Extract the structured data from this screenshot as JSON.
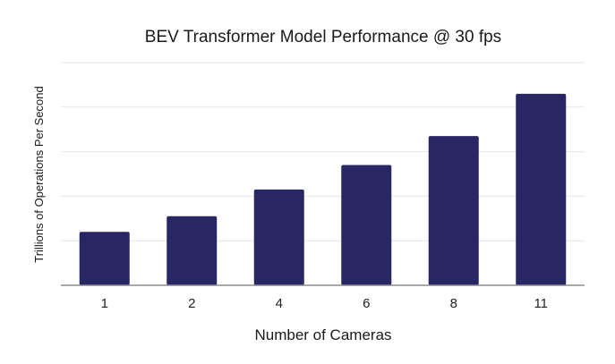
{
  "chart_data": {
    "type": "bar",
    "title": "BEV Transformer Model Performance @ 30 fps",
    "xlabel": "Number of Cameras",
    "ylabel": "Trillions of Operations Per Second",
    "categories": [
      "1",
      "2",
      "4",
      "6",
      "8",
      "11"
    ],
    "values": [
      1.2,
      1.55,
      2.15,
      2.7,
      3.35,
      4.3
    ],
    "ylim": [
      0,
      5
    ],
    "yticks": [
      0,
      1,
      2,
      3,
      4,
      5
    ],
    "grid": true,
    "show_y_tick_labels": false,
    "bar_color": "#282764"
  }
}
